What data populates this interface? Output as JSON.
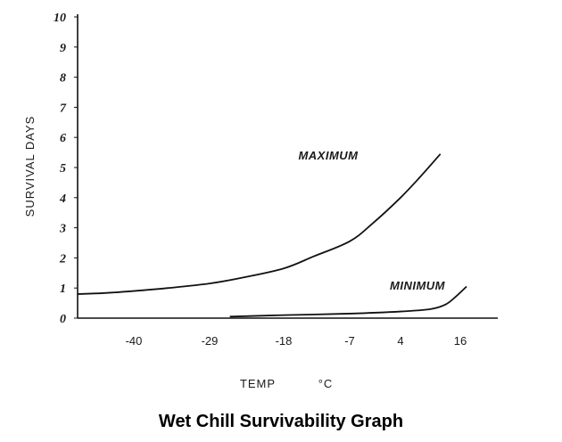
{
  "chart_data": {
    "type": "line",
    "title": "Wet Chill Survivability Graph",
    "xlabel": "TEMP",
    "xunit": "°C",
    "ylabel": "SURVIVAL  DAYS",
    "ylim": [
      0,
      10
    ],
    "yticks": [
      "0",
      "1",
      "2",
      "3",
      "4",
      "5",
      "6",
      "7",
      "8",
      "9",
      "10"
    ],
    "xticks": [
      "-40",
      "-29",
      "-18",
      "-7",
      "4",
      "16"
    ],
    "grid": false,
    "series": [
      {
        "name": "MAXIMUM",
        "x": [
          -51,
          -46,
          -40,
          -35,
          -29,
          -24,
          -18,
          -13,
          -7,
          -2,
          4,
          8,
          12
        ],
        "y": [
          0.8,
          0.83,
          0.9,
          1.0,
          1.15,
          1.35,
          1.65,
          2.05,
          2.55,
          3.15,
          4.0,
          4.7,
          5.45
        ]
      },
      {
        "name": "MINIMUM",
        "x": [
          -26,
          -18,
          -7,
          4,
          10,
          13,
          15,
          17
        ],
        "y": [
          0.05,
          0.1,
          0.15,
          0.22,
          0.3,
          0.45,
          0.7,
          1.05
        ]
      }
    ]
  }
}
